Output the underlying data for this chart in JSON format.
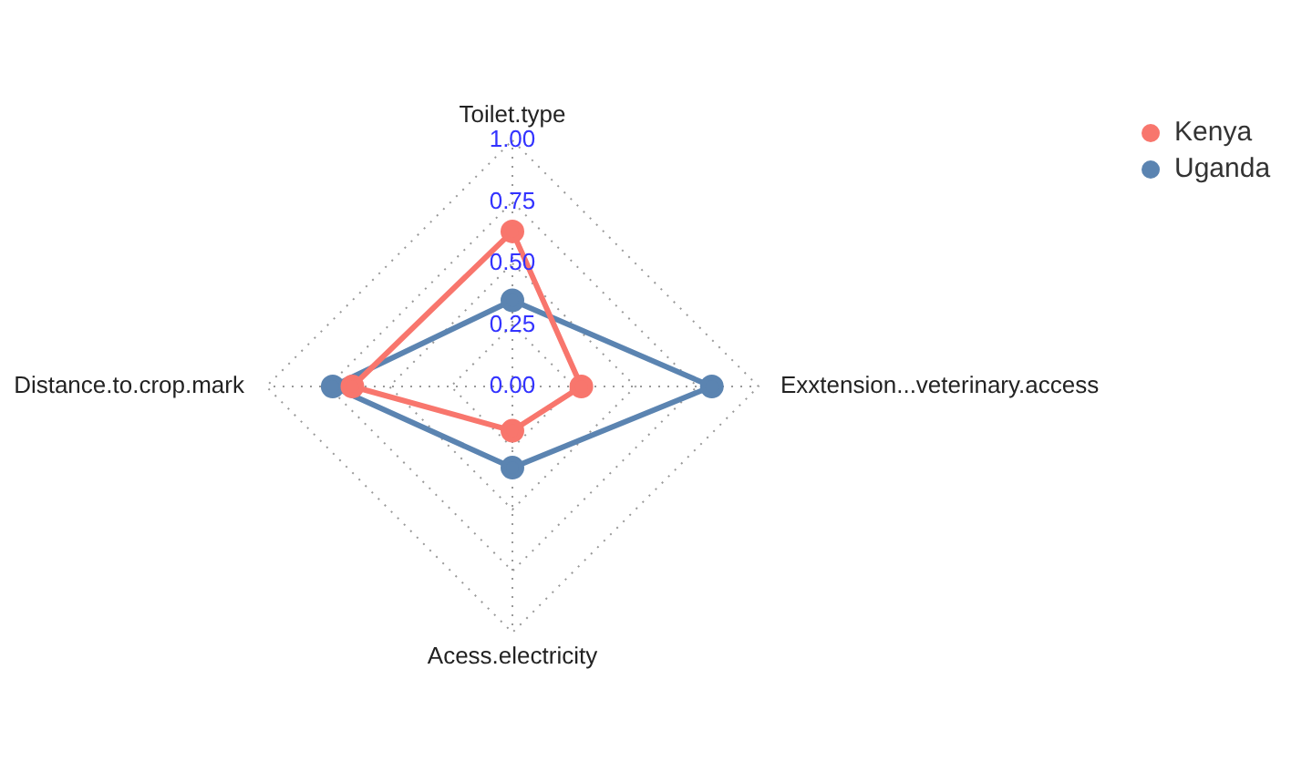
{
  "chart_data": {
    "type": "radar",
    "categories": [
      "Toilet.type",
      "Exxtension...veterinary.access",
      "Acess.electricity",
      "Distance.to.crop.mark"
    ],
    "series": [
      {
        "name": "Kenya",
        "color": "#f8766d",
        "values": [
          0.63,
          0.28,
          0.18,
          0.65
        ]
      },
      {
        "name": "Uganda",
        "color": "#5b84b1",
        "values": [
          0.35,
          0.81,
          0.33,
          0.73
        ]
      }
    ],
    "ylim": [
      0,
      1
    ],
    "yticks": [
      {
        "value": 0,
        "label": "0.00"
      },
      0.25,
      {
        "value": 0.5,
        "label": "0.50"
      },
      0.75,
      {
        "value": 1,
        "label": "1.00"
      }
    ],
    "grid": true,
    "legend": "top right",
    "marker": "circle",
    "line_style": "solid"
  }
}
